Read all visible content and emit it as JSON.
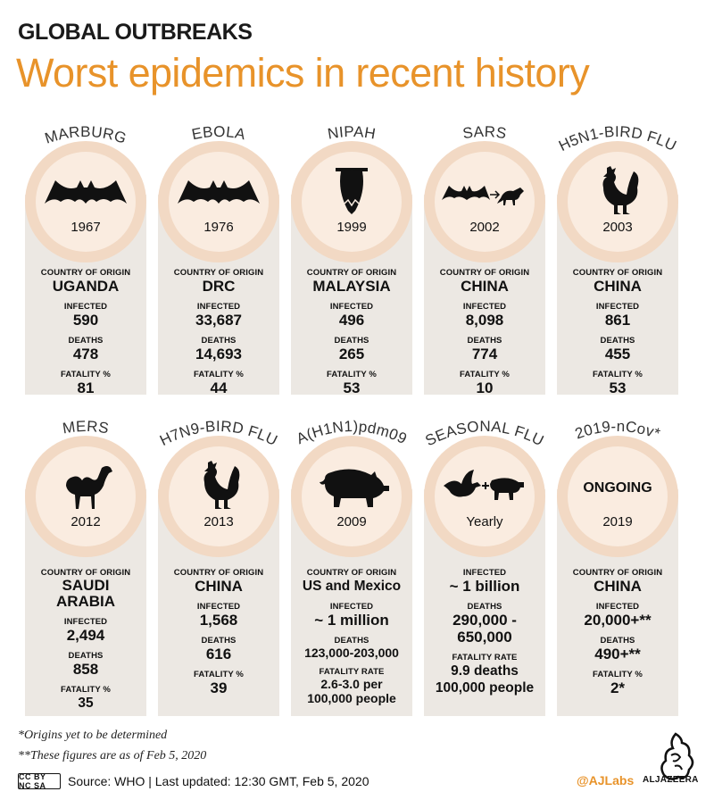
{
  "kicker": "GLOBAL OUTBREAKS",
  "headline": "Worst epidemics in recent history",
  "labels": {
    "country_of_origin": "COUNTRY OF ORIGIN",
    "infected": "INFECTED",
    "deaths": "DEATHS",
    "fatality_pct": "FATALITY %",
    "fatality_rate": "FATALITY RATE"
  },
  "epidemics": [
    {
      "name": "MARBURG",
      "year": "1967",
      "icon": "bat-icon",
      "country": "UGANDA",
      "infected": "590",
      "deaths": "478",
      "fatality": "81"
    },
    {
      "name": "EBOLA",
      "year": "1976",
      "icon": "bat-icon",
      "country": "DRC",
      "infected": "33,687",
      "deaths": "14,693",
      "fatality": "44"
    },
    {
      "name": "NIPAH",
      "year": "1999",
      "icon": "hanging-bat-icon",
      "country": "MALAYSIA",
      "infected": "496",
      "deaths": "265",
      "fatality": "53"
    },
    {
      "name": "SARS",
      "year": "2002",
      "icon": "bat-to-civet-icon",
      "country": "CHINA",
      "infected": "8,098",
      "deaths": "774",
      "fatality": "10"
    },
    {
      "name": "H5N1-BIRD FLU",
      "year": "2003",
      "icon": "rooster-icon",
      "country": "CHINA",
      "infected": "861",
      "deaths": "455",
      "fatality": "53"
    },
    {
      "name": "MERS",
      "year": "2012",
      "icon": "camel-icon",
      "country": "SAUDI ARABIA",
      "infected": "2,494",
      "deaths": "858",
      "fatality": "35"
    },
    {
      "name": "H7N9-BIRD FLU",
      "year": "2013",
      "icon": "rooster-icon",
      "country": "CHINA",
      "infected": "1,568",
      "deaths": "616",
      "fatality": "39"
    },
    {
      "name": "A(H1N1)pdm09",
      "year": "2009",
      "icon": "pig-icon",
      "country": "US and Mexico",
      "infected": "~ 1 million",
      "deaths": "123,000-203,000",
      "fatality": "2.6-3.0 per 100,000 people"
    },
    {
      "name": "SEASONAL FLU",
      "year": "Yearly",
      "icon": "bird-plus-pig-icon",
      "infected": "~ 1 billion",
      "deaths": "290,000 - 650,000",
      "fatality": "9.9 deaths 100,000 people"
    },
    {
      "name": "2019-nCov*",
      "year": "2019",
      "status": "ONGOING",
      "country": "CHINA",
      "infected": "20,000+**",
      "deaths": "490+**",
      "fatality": "2*"
    }
  ],
  "notes": [
    "*Origins yet to be determined",
    "**These figures are as of Feb 5, 2020"
  ],
  "footer": {
    "license": "CC BY NC SA",
    "source": "Source: WHO  |  Last updated: 12:30 GMT, Feb 5, 2020",
    "handle": "@AJLabs",
    "brand": "ALJAZEERA"
  },
  "colors": {
    "accent": "#e8932a",
    "panel": "#ece8e3",
    "ring": "#f2d9c4",
    "disk": "#faece0"
  }
}
